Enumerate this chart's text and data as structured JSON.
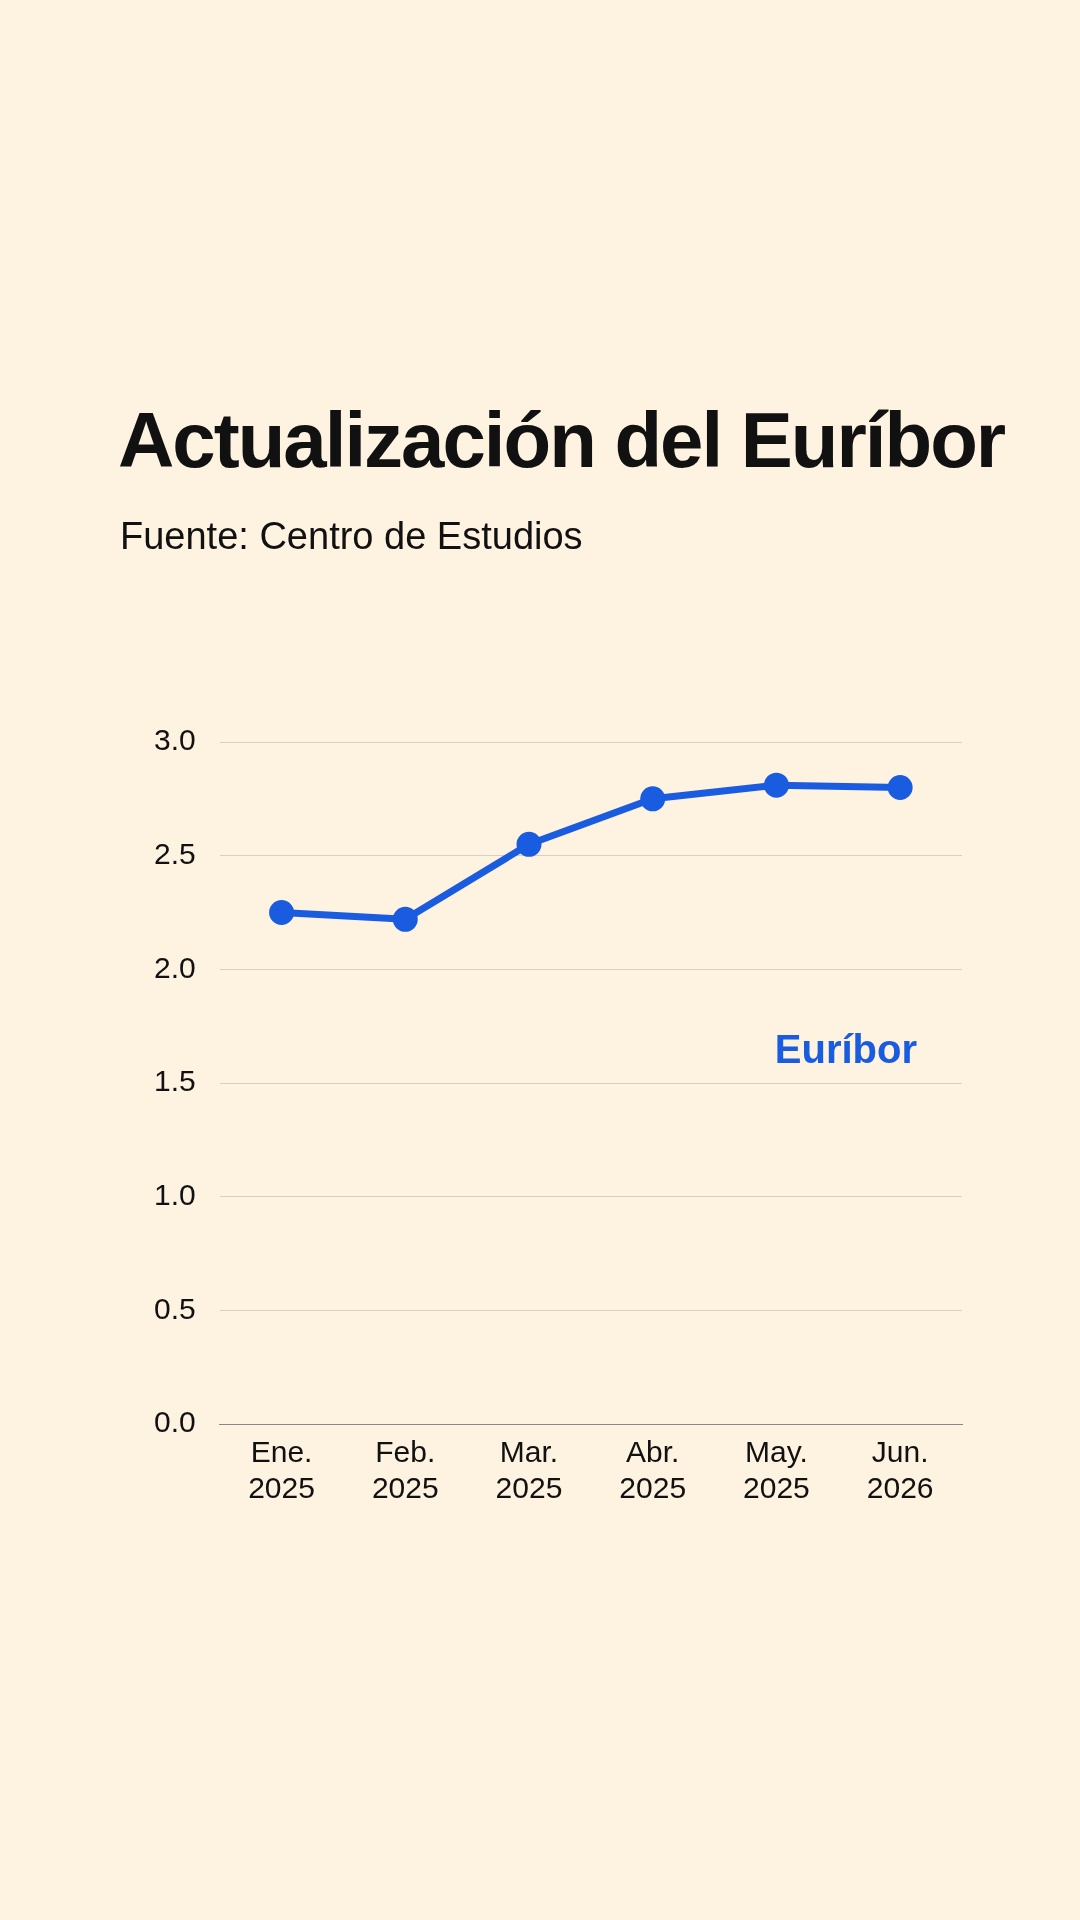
{
  "chart_data": {
    "type": "line",
    "title": "Actualización del Euríbor",
    "subtitle": "Fuente: Centro de Estudios",
    "categories": [
      "Ene. 2025",
      "Feb. 2025",
      "Mar. 2025",
      "Abr. 2025",
      "May. 2025",
      "Jun. 2026"
    ],
    "series": [
      {
        "name": "Euríbor",
        "color": "#1a5ce0",
        "values": [
          2.25,
          2.22,
          2.55,
          2.75,
          2.81,
          2.8
        ]
      }
    ],
    "ylim": [
      0,
      3.0
    ],
    "yticks": [
      {
        "value": 0,
        "label": "0.0"
      },
      {
        "value": 0.5,
        "label": "0.5"
      },
      {
        "value": 1,
        "label": "1.0"
      },
      {
        "value": 1.5,
        "label": "1.5"
      },
      {
        "value": 2,
        "label": "2.0"
      },
      {
        "value": 2.5,
        "label": "2.5"
      },
      {
        "value": 3,
        "label": "3.0"
      }
    ],
    "grid": "y",
    "legend": false,
    "marker": "circle",
    "line_style": "solid"
  }
}
